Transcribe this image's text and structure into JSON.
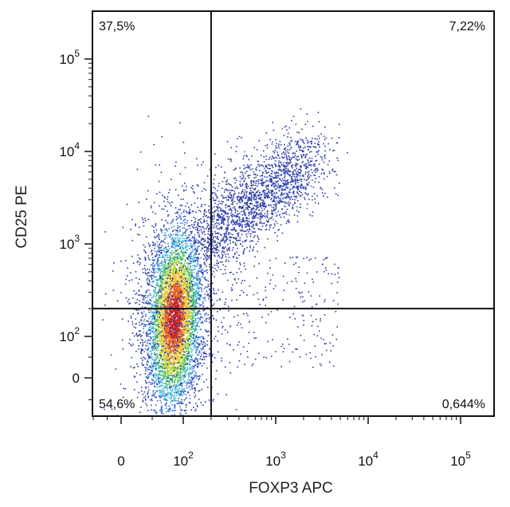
{
  "chart_data": {
    "type": "scatter",
    "xlabel": "FOXP3 APC",
    "ylabel": "CD25 PE",
    "x_scale": "logicle",
    "y_scale": "logicle",
    "x_ticks": [
      {
        "value": 0,
        "base": "0",
        "exp": ""
      },
      {
        "value": 100,
        "base": "10",
        "exp": "2"
      },
      {
        "value": 1000,
        "base": "10",
        "exp": "3"
      },
      {
        "value": 10000,
        "base": "10",
        "exp": "4"
      },
      {
        "value": 100000,
        "base": "10",
        "exp": "5"
      }
    ],
    "y_ticks": [
      {
        "value": 0,
        "base": "0",
        "exp": ""
      },
      {
        "value": 100,
        "base": "10",
        "exp": "2"
      },
      {
        "value": 1000,
        "base": "10",
        "exp": "3"
      },
      {
        "value": 10000,
        "base": "10",
        "exp": "4"
      },
      {
        "value": 100000,
        "base": "10",
        "exp": "5"
      }
    ],
    "gates": {
      "x": 200,
      "y": 200
    },
    "quadrants": {
      "upper_left": "37,5%",
      "upper_right": "7,22%",
      "lower_left": "54,6%",
      "lower_right": "0,644%"
    },
    "density_colors": [
      "#2b3aa6",
      "#3f6fd8",
      "#3fb7d9",
      "#4fc06a",
      "#b8d63a",
      "#f2c12e",
      "#e8601c",
      "#d8201c"
    ],
    "grid": false,
    "legend": "none"
  }
}
